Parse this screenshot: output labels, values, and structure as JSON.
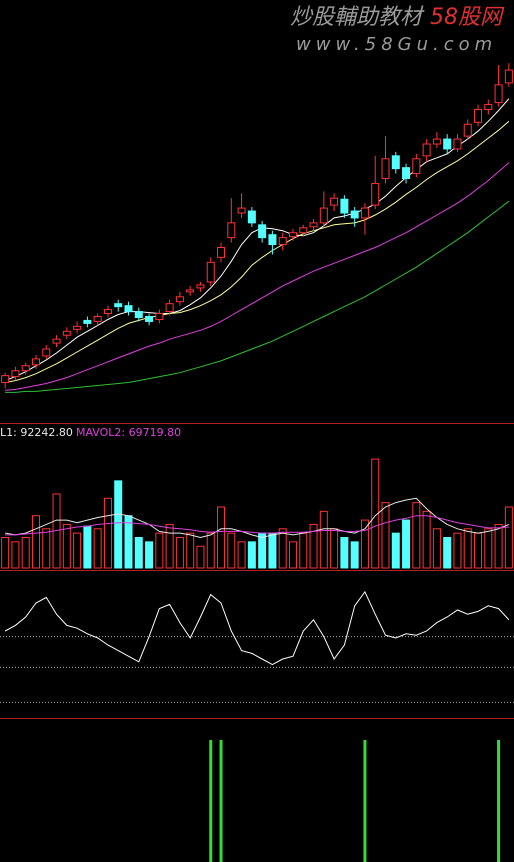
{
  "watermark": {
    "brand": "炒股輔助教材",
    "site": "58股网",
    "url": "www.58Gu.com"
  },
  "chart_data": [
    {
      "type": "candlestick",
      "up_color": "#ff3232",
      "down_color": "#54ffff",
      "xlim": [
        -0.5,
        49.5
      ],
      "ylim": [
        0,
        420
      ],
      "open": [
        38,
        44,
        50,
        56,
        65,
        78,
        86,
        92,
        101,
        100,
        108,
        118,
        116,
        110,
        105,
        102,
        110,
        120,
        130,
        134,
        140,
        165,
        185,
        210,
        212,
        198,
        188,
        178,
        186,
        190,
        196,
        200,
        218,
        224,
        212,
        205,
        218,
        245,
        268,
        256,
        250,
        268,
        280,
        285,
        275,
        288,
        302,
        315,
        322,
        342
      ],
      "high": [
        48,
        54,
        58,
        66,
        76,
        86,
        94,
        100,
        105,
        108,
        116,
        122,
        120,
        114,
        108,
        112,
        122,
        130,
        136,
        140,
        165,
        180,
        225,
        230,
        216,
        202,
        192,
        190,
        194,
        198,
        204,
        232,
        230,
        228,
        216,
        220,
        268,
        288,
        272,
        260,
        270,
        285,
        292,
        290,
        290,
        305,
        320,
        325,
        360,
        362
      ],
      "low": [
        32,
        40,
        46,
        52,
        62,
        74,
        82,
        88,
        94,
        96,
        104,
        110,
        106,
        100,
        96,
        98,
        106,
        116,
        126,
        130,
        136,
        160,
        180,
        205,
        196,
        180,
        168,
        172,
        182,
        186,
        192,
        196,
        212,
        205,
        196,
        188,
        214,
        240,
        250,
        240,
        246,
        262,
        276,
        270,
        272,
        284,
        298,
        310,
        318,
        338
      ],
      "close": [
        45,
        50,
        55,
        62,
        72,
        82,
        90,
        95,
        98,
        105,
        112,
        115,
        110,
        104,
        100,
        108,
        118,
        125,
        132,
        137,
        160,
        175,
        200,
        215,
        200,
        185,
        178,
        185,
        190,
        195,
        200,
        215,
        225,
        210,
        205,
        215,
        240,
        265,
        255,
        245,
        265,
        280,
        285,
        275,
        285,
        300,
        315,
        320,
        340,
        355
      ],
      "series": [
        {
          "color": "#ffffff",
          "values": [
            40,
            44,
            49,
            55,
            61,
            68,
            76,
            84,
            90,
            96,
            102,
            107,
            110,
            110,
            109,
            108,
            108,
            111,
            117,
            124,
            134,
            146,
            161,
            178,
            190,
            195,
            194,
            192,
            188,
            187,
            190,
            197,
            205,
            207,
            210,
            214,
            219,
            227,
            237,
            246,
            254,
            262,
            266,
            270,
            278,
            285,
            293,
            303,
            314,
            326
          ]
        },
        {
          "color": "#ffff99",
          "values": [
            38,
            40,
            43,
            47,
            52,
            57,
            63,
            69,
            75,
            81,
            87,
            93,
            98,
            101,
            104,
            106,
            108,
            109,
            112,
            116,
            121,
            127,
            135,
            145,
            157,
            165,
            172,
            178,
            184,
            189,
            192,
            195,
            198,
            199,
            200,
            203,
            208,
            214,
            221,
            229,
            236,
            244,
            251,
            257,
            263,
            270,
            278,
            286,
            294,
            303
          ]
        },
        {
          "color": "#e040e0",
          "values": [
            30,
            31,
            33,
            35,
            37,
            40,
            43,
            47,
            51,
            55,
            59,
            63,
            67,
            71,
            75,
            78,
            82,
            85,
            88,
            91,
            95,
            100,
            106,
            112,
            118,
            124,
            130,
            136,
            141,
            146,
            151,
            155,
            159,
            163,
            167,
            171,
            175,
            180,
            185,
            190,
            196,
            202,
            208,
            214,
            220,
            227,
            235,
            243,
            252,
            261
          ]
        },
        {
          "color": "#30c030",
          "values": [
            28,
            28,
            29,
            29,
            30,
            31,
            32,
            33,
            34,
            35,
            36,
            37,
            38,
            40,
            42,
            44,
            46,
            48,
            51,
            54,
            57,
            60,
            64,
            68,
            72,
            76,
            80,
            85,
            90,
            95,
            100,
            105,
            110,
            115,
            120,
            125,
            131,
            137,
            143,
            149,
            155,
            162,
            169,
            176,
            183,
            190,
            198,
            206,
            214,
            222
          ]
        }
      ]
    },
    {
      "type": "bar",
      "xlim": [
        -0.5,
        49.5
      ],
      "ylim": [
        0,
        140000
      ],
      "values": [
        35000,
        30000,
        35000,
        60000,
        45000,
        85000,
        50000,
        40000,
        48000,
        45000,
        80000,
        100000,
        60000,
        35000,
        30000,
        40000,
        50000,
        35000,
        40000,
        25000,
        40000,
        70000,
        40000,
        30000,
        30000,
        40000,
        40000,
        45000,
        30000,
        40000,
        50000,
        65000,
        45000,
        35000,
        30000,
        55000,
        125000,
        75000,
        40000,
        55000,
        75000,
        65000,
        45000,
        35000,
        40000,
        45000,
        40000,
        45000,
        50000,
        70000
      ],
      "series": [
        {
          "name": "L1: 92242.80",
          "color": "#e8e8e8",
          "values": [
            40000,
            38000,
            40000,
            45000,
            50000,
            55000,
            55000,
            52000,
            55000,
            58000,
            60000,
            62000,
            60000,
            55000,
            50000,
            42000,
            40000,
            40000,
            38000,
            35000,
            38000,
            45000,
            45000,
            42000,
            38000,
            35000,
            38000,
            40000,
            38000,
            40000,
            42000,
            45000,
            45000,
            42000,
            40000,
            45000,
            60000,
            70000,
            75000,
            78000,
            80000,
            68000,
            58000,
            50000,
            45000,
            42000,
            40000,
            42000,
            45000,
            50000
          ]
        },
        {
          "name": "MAVOL2: 69719.80",
          "color": "#e040e0",
          "values": [
            38000,
            38000,
            39000,
            40000,
            41000,
            43000,
            45000,
            47000,
            48000,
            50000,
            51000,
            52000,
            52000,
            51000,
            50000,
            48000,
            46000,
            45000,
            44000,
            42000,
            41000,
            42000,
            42000,
            42000,
            41000,
            40000,
            40000,
            41000,
            41000,
            41000,
            42000,
            43000,
            43000,
            42000,
            42000,
            43000,
            48000,
            52000,
            55000,
            57000,
            60000,
            60000,
            58000,
            55000,
            52000,
            50000,
            48000,
            46000,
            46000,
            47000
          ]
        }
      ]
    },
    {
      "type": "line",
      "xlim": [
        -0.5,
        49.5
      ],
      "ylim": [
        0,
        100
      ],
      "color": "#ffffff",
      "ref_lines": [
        56,
        34,
        9
      ],
      "values": [
        60,
        64,
        70,
        80,
        84,
        72,
        64,
        62,
        58,
        55,
        50,
        46,
        42,
        38,
        56,
        76,
        79,
        66,
        55,
        70,
        86,
        80,
        60,
        46,
        44,
        40,
        36,
        40,
        42,
        60,
        68,
        56,
        40,
        50,
        78,
        88,
        72,
        57,
        55,
        58,
        57,
        60,
        66,
        70,
        75,
        72,
        74,
        78,
        76,
        68
      ]
    },
    {
      "type": "signal",
      "xlim": [
        -0.5,
        49.5
      ],
      "ylim": [
        0,
        1
      ],
      "color": "#33dd33",
      "x": [
        20,
        21,
        35,
        48
      ],
      "values": [
        1,
        1,
        1,
        1
      ]
    }
  ]
}
